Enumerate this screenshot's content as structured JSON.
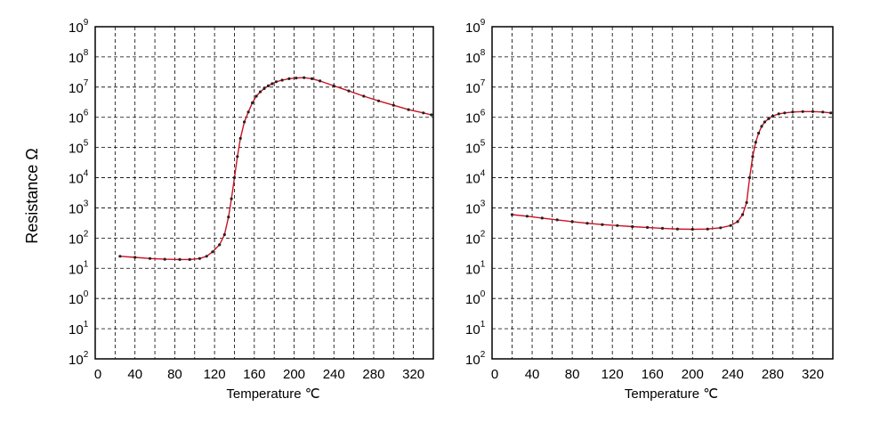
{
  "ylabel": "Resistance  Ω",
  "chart_data": [
    {
      "type": "line",
      "xlabel": "Temperature  ℃",
      "ylabel": "Resistance  Ω",
      "xlim": [
        0,
        340
      ],
      "x_ticks": [
        "0",
        "40",
        "80",
        "120",
        "160",
        "200",
        "240",
        "280",
        "320"
      ],
      "y_ticks": [
        {
          "base": "10",
          "exp": "2"
        },
        {
          "base": "10",
          "exp": "1"
        },
        {
          "base": "10",
          "exp": "0"
        },
        {
          "base": "10",
          "exp": "1"
        },
        {
          "base": "10",
          "exp": "2"
        },
        {
          "base": "10",
          "exp": "3"
        },
        {
          "base": "10",
          "exp": "4"
        },
        {
          "base": "10",
          "exp": "5"
        },
        {
          "base": "10",
          "exp": "6"
        },
        {
          "base": "10",
          "exp": "7"
        },
        {
          "base": "10",
          "exp": "8"
        },
        {
          "base": "10",
          "exp": "9"
        }
      ],
      "grid": true,
      "line_color": "#cc1122",
      "marker_color": "#222222",
      "series": [
        {
          "x": [
            25,
            40,
            55,
            70,
            85,
            95,
            105,
            112,
            118,
            125,
            130,
            134,
            137,
            140,
            143,
            146,
            150,
            154,
            158,
            162,
            166,
            170,
            174,
            178,
            182,
            188,
            195,
            202,
            210,
            218,
            226,
            240,
            255,
            270,
            285,
            300,
            315,
            330,
            338
          ],
          "y": [
            25,
            23,
            21,
            20,
            19.5,
            19.5,
            21,
            25,
            35,
            60,
            130,
            500,
            2000,
            10000,
            50000,
            200000,
            700000,
            1500000,
            3000000,
            5000000,
            7000000,
            9000000,
            11000000,
            13000000,
            15000000,
            17000000,
            19000000,
            20000000,
            20500000,
            19000000,
            16000000,
            11000000,
            7500000,
            5000000,
            3500000,
            2500000,
            1800000,
            1400000,
            1200000
          ]
        }
      ]
    },
    {
      "type": "line",
      "xlabel": "Temperature  ℃",
      "ylabel": "Resistance  Ω",
      "xlim": [
        0,
        340
      ],
      "x_ticks": [
        "0",
        "40",
        "80",
        "120",
        "160",
        "200",
        "240",
        "280",
        "320"
      ],
      "y_ticks": [
        {
          "base": "10",
          "exp": "2"
        },
        {
          "base": "10",
          "exp": "1"
        },
        {
          "base": "10",
          "exp": "0"
        },
        {
          "base": "10",
          "exp": "1"
        },
        {
          "base": "10",
          "exp": "2"
        },
        {
          "base": "10",
          "exp": "3"
        },
        {
          "base": "10",
          "exp": "4"
        },
        {
          "base": "10",
          "exp": "5"
        },
        {
          "base": "10",
          "exp": "6"
        },
        {
          "base": "10",
          "exp": "7"
        },
        {
          "base": "10",
          "exp": "8"
        },
        {
          "base": "10",
          "exp": "9"
        }
      ],
      "grid": true,
      "line_color": "#cc1122",
      "marker_color": "#222222",
      "series": [
        {
          "x": [
            20,
            35,
            50,
            65,
            80,
            95,
            110,
            125,
            140,
            155,
            170,
            185,
            200,
            215,
            228,
            238,
            245,
            250,
            254,
            257,
            260,
            263,
            266,
            269,
            272,
            276,
            280,
            286,
            292,
            300,
            310,
            320,
            330,
            338
          ],
          "y": [
            600,
            530,
            460,
            400,
            350,
            310,
            280,
            260,
            240,
            225,
            210,
            200,
            195,
            200,
            220,
            260,
            350,
            600,
            1500,
            10000,
            50000,
            150000,
            300000,
            500000,
            700000,
            900000,
            1100000,
            1300000,
            1400000,
            1500000,
            1550000,
            1550000,
            1500000,
            1400000
          ]
        }
      ]
    }
  ]
}
